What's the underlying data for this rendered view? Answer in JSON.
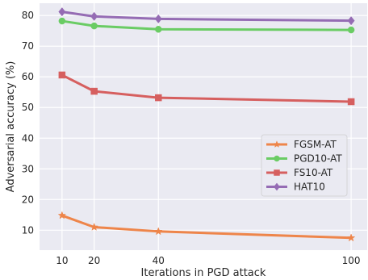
{
  "chart_data": {
    "type": "line",
    "title": "",
    "xlabel": "Iterations in PGD attack",
    "ylabel": "Adversarial accuracy (%)",
    "x": [
      10,
      20,
      40,
      100
    ],
    "x_ticks": [
      10,
      20,
      40,
      100
    ],
    "y_ticks": [
      10,
      20,
      30,
      40,
      50,
      60,
      70,
      80
    ],
    "xlim": [
      3,
      105
    ],
    "ylim": [
      3.5,
      84
    ],
    "grid": true,
    "legend_position": "center-right",
    "series": [
      {
        "name": "FGSM-AT",
        "values": [
          14.8,
          11.0,
          9.6,
          7.5
        ],
        "color": "#ee854a",
        "marker": "star"
      },
      {
        "name": "PGD10-AT",
        "values": [
          78.2,
          76.6,
          75.5,
          75.3
        ],
        "color": "#6acc64",
        "marker": "circle"
      },
      {
        "name": "FS10-AT",
        "values": [
          60.6,
          55.3,
          53.2,
          51.9
        ],
        "color": "#d65f5f",
        "marker": "square"
      },
      {
        "name": "HAT10",
        "values": [
          81.2,
          79.7,
          78.9,
          78.3
        ],
        "color": "#956cb4",
        "marker": "diamond"
      }
    ]
  }
}
